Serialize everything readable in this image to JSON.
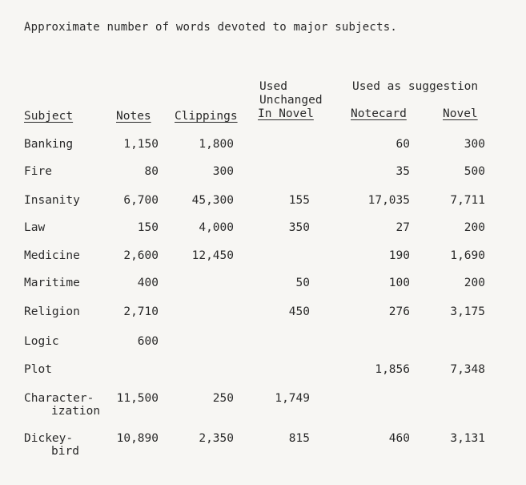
{
  "title": "Approximate number of words devoted to major subjects.",
  "headers": {
    "subject": "Subject",
    "notes": "Notes",
    "clippings": "Clippings",
    "used_unchanged_line1": "Used",
    "used_unchanged_line2": "Unchanged",
    "used_unchanged_line3": "In Novel",
    "used_as_suggestion": "Used as suggestion",
    "notecard": "Notecard",
    "novel": "Novel"
  },
  "rows": [
    {
      "subject": "Banking",
      "subject2": "",
      "notes": "1,150",
      "clippings": "1,800",
      "unchanged": "",
      "notecard": "60",
      "novel": "300"
    },
    {
      "subject": "Fire",
      "subject2": "",
      "notes": "80",
      "clippings": "300",
      "unchanged": "",
      "notecard": "35",
      "novel": "500"
    },
    {
      "subject": "Insanity",
      "subject2": "",
      "notes": "6,700",
      "clippings": "45,300",
      "unchanged": "155",
      "notecard": "17,035",
      "novel": "7,711"
    },
    {
      "subject": "Law",
      "subject2": "",
      "notes": "150",
      "clippings": "4,000",
      "unchanged": "350",
      "notecard": "27",
      "novel": "200"
    },
    {
      "subject": "Medicine",
      "subject2": "",
      "notes": "2,600",
      "clippings": "12,450",
      "unchanged": "",
      "notecard": "190",
      "novel": "1,690"
    },
    {
      "subject": "Maritime",
      "subject2": "",
      "notes": "400",
      "clippings": "",
      "unchanged": "50",
      "notecard": "100",
      "novel": "200"
    },
    {
      "subject": "Religion",
      "subject2": "",
      "notes": "2,710",
      "clippings": "",
      "unchanged": "450",
      "notecard": "276",
      "novel": "3,175"
    },
    {
      "subject": "Logic",
      "subject2": "",
      "notes": "600",
      "clippings": "",
      "unchanged": "",
      "notecard": "",
      "novel": ""
    },
    {
      "subject": "Plot",
      "subject2": "",
      "notes": "",
      "clippings": "",
      "unchanged": "",
      "notecard": "1,856",
      "novel": "7,348"
    },
    {
      "subject": "Character-",
      "subject2": "ization",
      "notes": "11,500",
      "clippings": "250",
      "unchanged": "1,749",
      "notecard": "",
      "novel": ""
    },
    {
      "subject": "Dickey-",
      "subject2": "bird",
      "notes": "10,890",
      "clippings": "2,350",
      "unchanged": "815",
      "notecard": "460",
      "novel": "3,131"
    }
  ]
}
